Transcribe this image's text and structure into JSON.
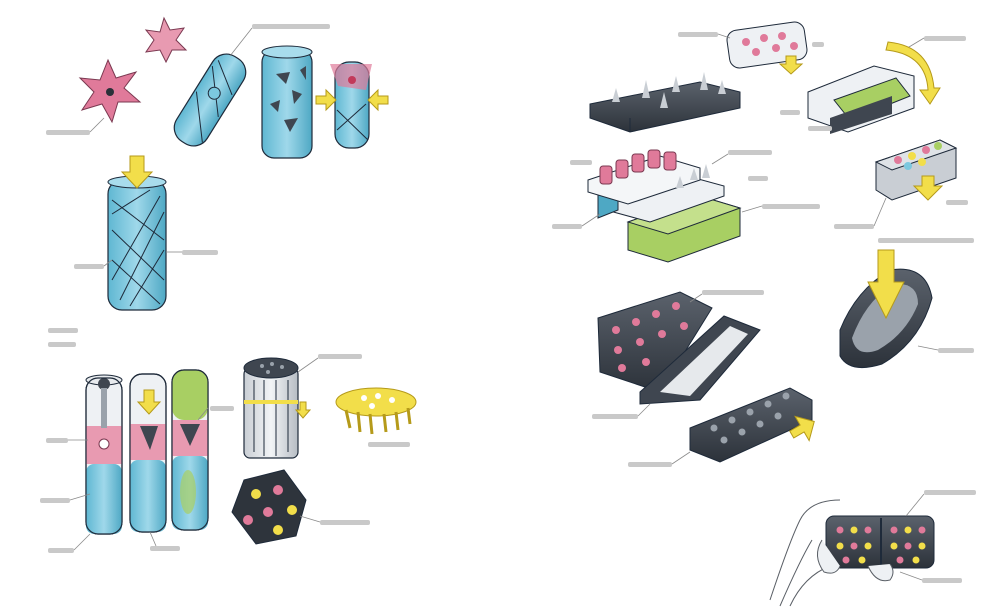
{
  "sheet": {
    "labels": [],
    "colors": {
      "cyan": "#7cc8df",
      "cyan_dark": "#4ea8c4",
      "pink": "#e07a9a",
      "pink_light": "#f2b7c7",
      "green": "#a8cf63",
      "yellow": "#f2de4a",
      "charcoal": "#3f4650",
      "charcoal_dark": "#2a3038",
      "white_body": "#eef1f4",
      "outline": "#1e2a3a"
    },
    "icons": [
      "star-flower-icon",
      "arrow-down-icon",
      "arrow-right-icon",
      "arrow-curve-icon"
    ]
  }
}
